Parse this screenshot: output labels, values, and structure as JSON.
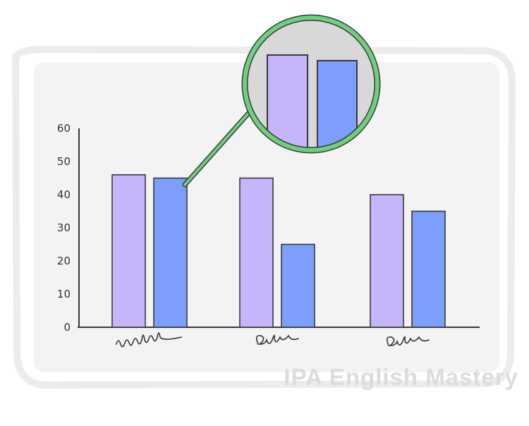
{
  "chart_data": {
    "type": "bar",
    "categories": [
      "",
      "",
      ""
    ],
    "series": [
      {
        "values": [
          46,
          45,
          40
        ],
        "color": "#c6b5fb"
      },
      {
        "values": [
          45,
          25,
          35
        ],
        "color": "#7d9efc"
      }
    ],
    "yticks": [
      0,
      10,
      20,
      30,
      40,
      50,
      60
    ],
    "ylim": [
      0,
      60
    ],
    "grid": false,
    "magnifier": {
      "focus": "category 1",
      "border_color": "#6cd07c"
    }
  },
  "watermark": "IPA English Mastery",
  "colors": {
    "background_panel": "#f3f3f3",
    "axis": "#3a3a3a",
    "magnifier_fill": "#d8d8d8"
  }
}
